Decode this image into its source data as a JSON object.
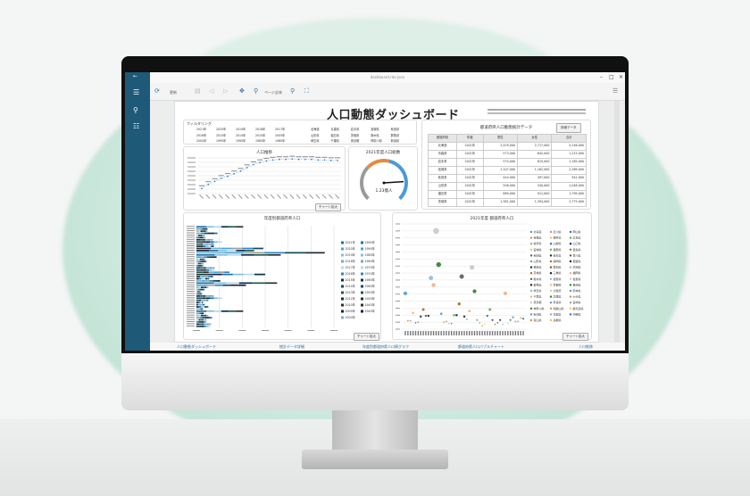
{
  "window": {
    "title": "dashboard.rdx-json"
  },
  "toolbar": {
    "refresh_label": "更新",
    "page_fit_label": "ページ全体"
  },
  "report": {
    "title": "人口動態ダッシュボード"
  },
  "filter": {
    "title": "フィルタリング",
    "years": [
      "2021年",
      "2020年",
      "2019年",
      "2018年",
      "2017年",
      "2016年",
      "2015年",
      "2014年",
      "2010年",
      "2005年",
      "2000年",
      "1995年",
      "1990年",
      "1985年",
      "1980年"
    ],
    "prefectures": [
      "北海道",
      "青森県",
      "岩手県",
      "宮城県",
      "秋田県",
      "山形県",
      "福島県",
      "茨城県",
      "栃木県",
      "群馬県",
      "埼玉県",
      "千葉県",
      "東京都",
      "神奈川県",
      "新潟県"
    ]
  },
  "table": {
    "title": "都道府県人口動態統計データ",
    "detail_button": "詳細データ",
    "headers": [
      "都道府県",
      "年度",
      "男性",
      "女性",
      "合計"
    ],
    "rows": [
      [
        "北海道",
        "2021年",
        "2,429,000",
        "2,717,000",
        "5,146,000"
      ],
      [
        "青森県",
        "2021年",
        "573,000",
        "642,000",
        "1,215,000"
      ],
      [
        "岩手県",
        "2021年",
        "570,000",
        "615,000",
        "1,185,000"
      ],
      [
        "宮城県",
        "2021年",
        "1,107,000",
        "1,162,000",
        "2,269,000"
      ],
      [
        "秋田県",
        "2021年",
        "444,000",
        "497,000",
        "941,000"
      ],
      [
        "山形県",
        "2021年",
        "508,000",
        "540,000",
        "1,048,000"
      ],
      [
        "福島県",
        "2021年",
        "889,000",
        "911,000",
        "1,799,000"
      ],
      [
        "茨城県",
        "2021年",
        "1,381,000",
        "1,394,000",
        "2,775,000"
      ]
    ]
  },
  "line_chart": {
    "title": "人口推移",
    "button": "チャート拡大"
  },
  "gauge": {
    "title": "2021年度人口総数",
    "value_label": "1.23億人",
    "value": 1.23,
    "max": 1.5,
    "colors": {
      "low": "#9a9a9a",
      "mid": "#e8893a",
      "high": "#4a9bd6"
    }
  },
  "bar_chart": {
    "title": "年度別都道府県人口",
    "button": "チャート拡大",
    "legend": [
      "2021年",
      "2020年",
      "2019年",
      "2018年",
      "2017年",
      "2016年",
      "2015年",
      "2014年",
      "2013年",
      "2012年",
      "2010年",
      "2005年",
      "2000年",
      "1995年",
      "1990年",
      "1985年",
      "1980年",
      "1975年",
      "1970年",
      "1965年",
      "1960年",
      "1955年",
      "1950年",
      "1945年",
      "1940年"
    ]
  },
  "bubble_chart": {
    "title": "2021年度 都道府県人口",
    "button": "チャート拡大",
    "legend": [
      "北海道",
      "青森県",
      "岩手県",
      "宮城県",
      "秋田県",
      "山形県",
      "福島県",
      "茨城県",
      "栃木県",
      "群馬県",
      "埼玉県",
      "千葉県",
      "東京都",
      "神奈川県",
      "新潟県",
      "富山県",
      "石川県",
      "福井県",
      "山梨県",
      "長野県",
      "岐阜県",
      "静岡県",
      "愛知県",
      "三重県",
      "滋賀県",
      "京都府",
      "大阪府",
      "兵庫県",
      "奈良県",
      "和歌山県",
      "鳥取県",
      "島根県",
      "岡山県",
      "広島県",
      "山口県",
      "徳島県",
      "香川県",
      "愛媛県",
      "高知県",
      "福岡県",
      "佐賀県",
      "長崎県",
      "熊本県",
      "大分県",
      "宮崎県",
      "鹿児島県",
      "沖縄県"
    ]
  },
  "chart_data": [
    {
      "type": "line",
      "title": "人口推移",
      "values": [
        0.7,
        0.78,
        0.84,
        0.9,
        0.94,
        0.99,
        1.04,
        1.11,
        1.17,
        1.21,
        1.24,
        1.26,
        1.27,
        1.27,
        1.28,
        1.27,
        1.27,
        1.27,
        1.26,
        1.26,
        1.25,
        1.25
      ]
    },
    {
      "type": "bubble",
      "title": "2021年度 都道府県人口",
      "values": [
        5.1,
        1.2,
        1.2,
        2.3,
        0.9,
        1.0,
        1.8,
        2.8,
        1.9,
        1.9,
        7.3,
        6.3,
        14.0,
        9.2,
        2.2,
        1.0,
        1.1,
        0.8,
        0.8,
        2.0,
        2.0,
        3.6,
        7.5,
        1.8,
        1.4,
        2.6,
        8.8,
        5.4,
        1.3,
        0.9,
        0.5,
        0.7,
        1.9,
        2.8,
        1.3,
        0.7,
        0.9,
        1.3,
        0.7,
        5.1,
        0.8,
        1.3,
        1.7,
        1.1,
        1.1,
        1.6,
        1.5
      ]
    }
  ],
  "footer_tabs": [
    "人口動態ダッシュボード",
    "統計データ詳細",
    "年度別都道府県人口棒グラフ",
    "都道府県人口バブルチャート",
    "人口推移"
  ]
}
